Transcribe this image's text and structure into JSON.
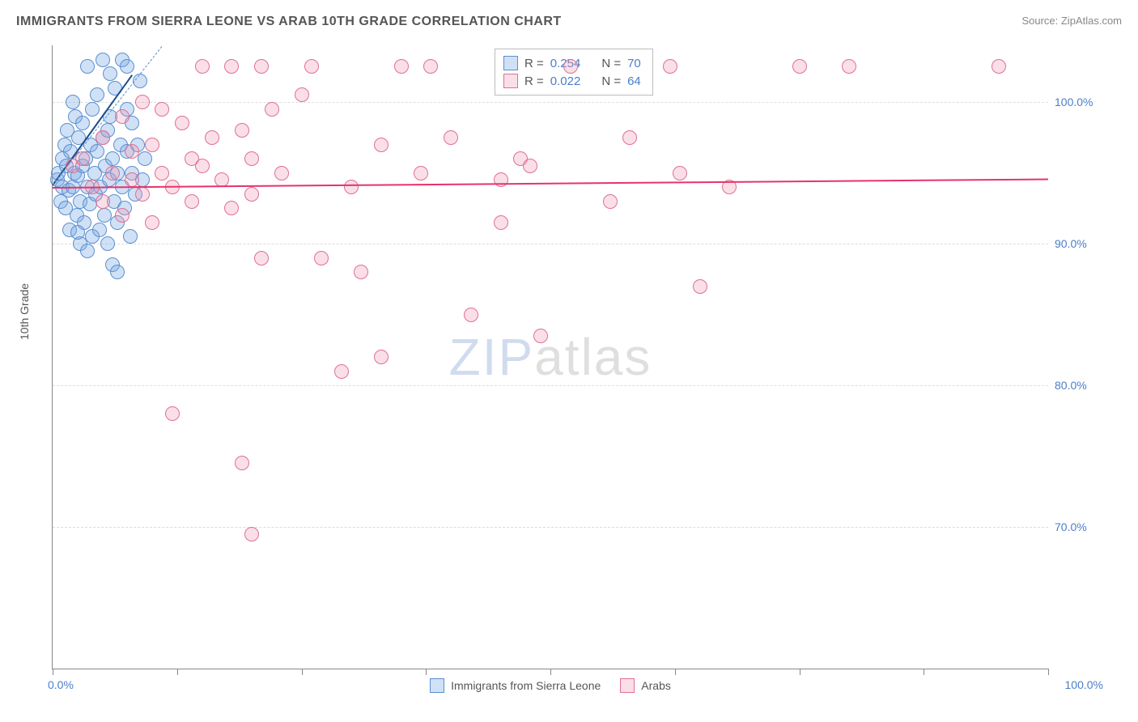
{
  "title": "IMMIGRANTS FROM SIERRA LEONE VS ARAB 10TH GRADE CORRELATION CHART",
  "source_label": "Source: ZipAtlas.com",
  "ylabel": "10th Grade",
  "watermark": {
    "part1": "ZIP",
    "part2": "atlas"
  },
  "chart": {
    "type": "scatter",
    "xlim": [
      0,
      100
    ],
    "ylim": [
      60,
      104
    ],
    "x_tick_positions": [
      0,
      12.5,
      25,
      37.5,
      50,
      62.5,
      75,
      87.5,
      100
    ],
    "x_min_label": "0.0%",
    "x_max_label": "100.0%",
    "y_gridlines": [
      {
        "value": 70,
        "label": "70.0%"
      },
      {
        "value": 80,
        "label": "80.0%"
      },
      {
        "value": 90,
        "label": "90.0%"
      },
      {
        "value": 100,
        "label": "100.0%"
      }
    ],
    "grid_color": "#dddddd",
    "axis_color": "#888888",
    "background_color": "#ffffff",
    "tick_label_color": "#4a7ec9",
    "marker_radius": 9,
    "marker_stroke_width": 1.5,
    "series": [
      {
        "name": "Immigrants from Sierra Leone",
        "fill_color": "rgba(120,170,230,0.35)",
        "stroke_color": "#5b8fd0",
        "r_value": "0.254",
        "n_value": "70",
        "trend": {
          "x1": 0,
          "y1": 94.2,
          "x2": 8,
          "y2": 102,
          "color": "#1c4e8a",
          "width": 2,
          "dash": false
        },
        "ref_line": {
          "x1": 0,
          "y1": 94.2,
          "x2": 11,
          "y2": 104,
          "color": "#5b8fd0",
          "width": 1,
          "dash": true
        },
        "points": [
          [
            0.5,
            94.5
          ],
          [
            0.6,
            95.0
          ],
          [
            0.8,
            93.0
          ],
          [
            1.0,
            96.0
          ],
          [
            1.0,
            94.0
          ],
          [
            1.2,
            97.0
          ],
          [
            1.3,
            92.5
          ],
          [
            1.4,
            95.5
          ],
          [
            1.5,
            98.0
          ],
          [
            1.6,
            93.8
          ],
          [
            1.7,
            91.0
          ],
          [
            1.8,
            96.5
          ],
          [
            2.0,
            100.0
          ],
          [
            2.0,
            94.0
          ],
          [
            2.2,
            95.0
          ],
          [
            2.3,
            99.0
          ],
          [
            2.4,
            92.0
          ],
          [
            2.5,
            94.8
          ],
          [
            2.6,
            97.5
          ],
          [
            2.8,
            90.0
          ],
          [
            2.8,
            93.0
          ],
          [
            3.0,
            98.5
          ],
          [
            3.0,
            95.5
          ],
          [
            3.2,
            91.5
          ],
          [
            3.3,
            96.0
          ],
          [
            3.5,
            102.5
          ],
          [
            3.5,
            94.0
          ],
          [
            3.7,
            92.8
          ],
          [
            3.8,
            97.0
          ],
          [
            4.0,
            99.5
          ],
          [
            4.0,
            90.5
          ],
          [
            4.2,
            95.0
          ],
          [
            4.3,
            93.5
          ],
          [
            4.5,
            100.5
          ],
          [
            4.5,
            96.5
          ],
          [
            4.7,
            91.0
          ],
          [
            4.8,
            94.0
          ],
          [
            5.0,
            103.0
          ],
          [
            5.0,
            97.5
          ],
          [
            5.2,
            92.0
          ],
          [
            5.3,
            95.5
          ],
          [
            5.5,
            98.0
          ],
          [
            5.5,
            90.0
          ],
          [
            5.7,
            94.5
          ],
          [
            5.8,
            99.0
          ],
          [
            6.0,
            96.0
          ],
          [
            6.0,
            88.5
          ],
          [
            6.2,
            93.0
          ],
          [
            6.3,
            101.0
          ],
          [
            6.5,
            95.0
          ],
          [
            6.5,
            91.5
          ],
          [
            6.8,
            97.0
          ],
          [
            7.0,
            103.0
          ],
          [
            7.0,
            94.0
          ],
          [
            7.2,
            92.5
          ],
          [
            7.5,
            99.5
          ],
          [
            7.5,
            96.5
          ],
          [
            7.8,
            90.5
          ],
          [
            8.0,
            95.0
          ],
          [
            8.0,
            98.5
          ],
          [
            8.3,
            93.5
          ],
          [
            8.5,
            97.0
          ],
          [
            8.8,
            101.5
          ],
          [
            9.0,
            94.5
          ],
          [
            9.3,
            96.0
          ],
          [
            7.5,
            102.5
          ],
          [
            6.5,
            88.0
          ],
          [
            3.5,
            89.5
          ],
          [
            2.5,
            90.8
          ],
          [
            5.8,
            102.0
          ]
        ]
      },
      {
        "name": "Arabs",
        "fill_color": "rgba(240,150,180,0.30)",
        "stroke_color": "#e07090",
        "r_value": "0.022",
        "n_value": "64",
        "trend": {
          "x1": 0,
          "y1": 94.0,
          "x2": 100,
          "y2": 94.6,
          "color": "#e6336b",
          "width": 2,
          "dash": false
        },
        "points": [
          [
            2,
            95.5
          ],
          [
            3,
            96.0
          ],
          [
            4,
            94.0
          ],
          [
            5,
            97.5
          ],
          [
            5,
            93.0
          ],
          [
            6,
            95.0
          ],
          [
            7,
            99.0
          ],
          [
            7,
            92.0
          ],
          [
            8,
            96.5
          ],
          [
            8,
            94.5
          ],
          [
            9,
            100.0
          ],
          [
            9,
            93.5
          ],
          [
            10,
            97.0
          ],
          [
            10,
            91.5
          ],
          [
            11,
            95.0
          ],
          [
            11,
            99.5
          ],
          [
            12,
            94.0
          ],
          [
            12,
            78.0
          ],
          [
            13,
            98.5
          ],
          [
            14,
            96.0
          ],
          [
            14,
            93.0
          ],
          [
            15,
            102.5
          ],
          [
            15,
            95.5
          ],
          [
            16,
            97.5
          ],
          [
            17,
            94.5
          ],
          [
            18,
            102.5
          ],
          [
            18,
            92.5
          ],
          [
            19,
            98.0
          ],
          [
            19,
            74.5
          ],
          [
            20,
            96.0
          ],
          [
            20,
            93.5
          ],
          [
            20,
            69.5
          ],
          [
            21,
            102.5
          ],
          [
            21,
            89.0
          ],
          [
            22,
            99.5
          ],
          [
            23,
            95.0
          ],
          [
            25,
            100.5
          ],
          [
            26,
            102.5
          ],
          [
            27,
            89.0
          ],
          [
            29,
            81.0
          ],
          [
            31,
            88.0
          ],
          [
            33,
            97.0
          ],
          [
            33,
            82.0
          ],
          [
            35,
            102.5
          ],
          [
            37,
            95.0
          ],
          [
            38,
            102.5
          ],
          [
            40,
            97.5
          ],
          [
            42,
            85.0
          ],
          [
            45,
            94.5
          ],
          [
            45,
            91.5
          ],
          [
            47,
            96.0
          ],
          [
            49,
            83.5
          ],
          [
            52,
            102.5
          ],
          [
            56,
            93.0
          ],
          [
            58,
            97.5
          ],
          [
            62,
            102.5
          ],
          [
            63,
            95.0
          ],
          [
            65,
            87.0
          ],
          [
            68,
            94.0
          ],
          [
            80,
            102.5
          ],
          [
            75,
            102.5
          ],
          [
            48,
            95.5
          ],
          [
            30,
            94.0
          ],
          [
            95,
            102.5
          ]
        ]
      }
    ]
  },
  "legend": {
    "r_label": "R =",
    "n_label": "N ="
  }
}
